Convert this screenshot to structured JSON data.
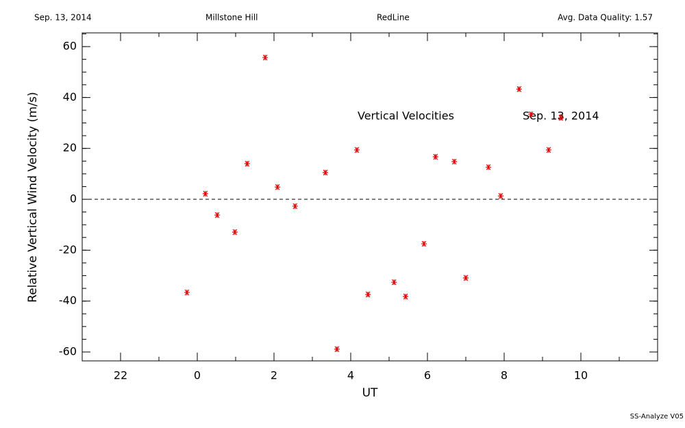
{
  "chart_data": {
    "type": "scatter",
    "header": {
      "date": "Sep. 13, 2014",
      "site": "Millstone Hill",
      "emission": "RedLine",
      "quality": "Avg. Data Quality: 1.57"
    },
    "annotations": [
      "Vertical Velocities",
      "Sep. 13, 2014"
    ],
    "footer": "SS-Analyze V05",
    "xlabel": "UT",
    "ylabel": "Relative Vertical Wind Velocity (m/s)",
    "xlim": [
      -3,
      12
    ],
    "ylim": [
      -63.5,
      65.4
    ],
    "xticks": [
      {
        "value": -2,
        "label": "22"
      },
      0,
      2,
      4,
      6,
      8,
      10
    ],
    "yticks": [
      -60,
      -40,
      -20,
      0,
      20,
      40,
      60
    ],
    "xminor": 1,
    "yminor": 5,
    "zero_line": true,
    "color": "#e00000",
    "x": [
      -0.27,
      0.21,
      0.52,
      0.98,
      1.3,
      1.77,
      2.09,
      2.55,
      3.34,
      3.64,
      4.16,
      4.45,
      5.13,
      5.43,
      5.91,
      6.21,
      6.7,
      7.0,
      7.59,
      7.91,
      8.39,
      8.7,
      9.16,
      9.48
    ],
    "values": [
      -36.6,
      2.2,
      -6.2,
      -12.9,
      14.0,
      55.7,
      4.8,
      -2.7,
      10.5,
      -58.9,
      19.4,
      -37.4,
      -32.6,
      -38.2,
      -17.5,
      16.7,
      14.8,
      -30.9,
      12.6,
      1.3,
      43.3,
      33.4,
      19.4,
      32.0
    ]
  }
}
